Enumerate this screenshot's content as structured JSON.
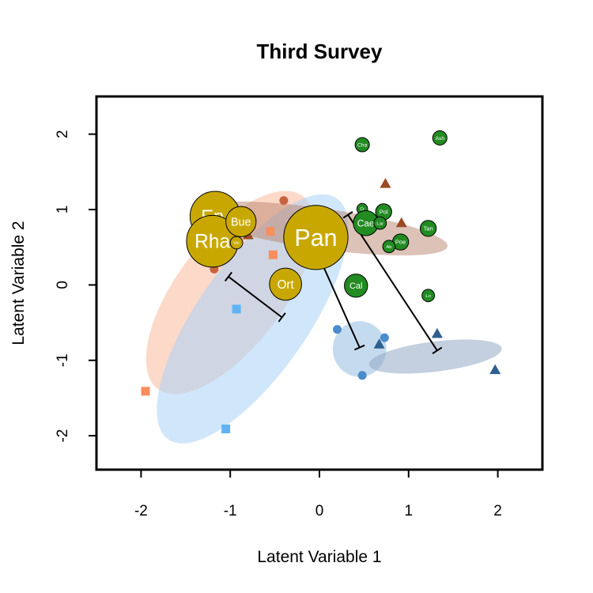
{
  "chart_data": {
    "type": "scatter",
    "title": "Third Survey",
    "xlabel": "Latent Variable 1",
    "ylabel": "Latent Variable 2",
    "xlim": [
      -2.5,
      2.5
    ],
    "ylim": [
      -2.45,
      2.5
    ],
    "xticks": [
      -2,
      -1,
      0,
      1,
      2
    ],
    "yticks": [
      -2,
      -1,
      0,
      1,
      2
    ],
    "grid": false,
    "legend": "none",
    "ellipses": [
      {
        "cx": -1.0,
        "cy": -0.1,
        "rx": 0.6,
        "ry": 1.6,
        "angle": 37,
        "color": "#FBB99C",
        "opacity": 0.55
      },
      {
        "cx": -0.75,
        "cy": -0.45,
        "rx": 0.62,
        "ry": 1.95,
        "angle": 35,
        "color": "#A9D2F5",
        "opacity": 0.55
      },
      {
        "cx": 0.0,
        "cy": 0.75,
        "rx": 1.45,
        "ry": 0.27,
        "angle": 8,
        "color": "#B98670",
        "opacity": 0.5
      },
      {
        "cx": 0.45,
        "cy": -0.85,
        "rx": 0.3,
        "ry": 0.37,
        "angle": 0,
        "color": "#9CC3E4",
        "opacity": 0.6
      },
      {
        "cx": 1.3,
        "cy": -0.95,
        "rx": 0.75,
        "ry": 0.2,
        "angle": -7,
        "color": "#93A8C4",
        "opacity": 0.55
      }
    ],
    "segments": [
      {
        "x1": -1.02,
        "y1": 0.11,
        "x2": -0.42,
        "y2": -0.43
      },
      {
        "x1": -0.15,
        "y1": 0.76,
        "x2": 0.45,
        "y2": -0.83
      },
      {
        "x1": 0.32,
        "y1": 0.93,
        "x2": 1.32,
        "y2": -0.87
      }
    ],
    "points": [
      {
        "x": -1.95,
        "y": -1.41,
        "shape": "square",
        "color": "#F98D5E"
      },
      {
        "x": -1.05,
        "y": -1.91,
        "shape": "square",
        "color": "#5FB3F3"
      },
      {
        "x": -0.93,
        "y": -0.32,
        "shape": "square",
        "color": "#5FB3F3"
      },
      {
        "x": -0.55,
        "y": 0.71,
        "shape": "square",
        "color": "#F98D5E"
      },
      {
        "x": -0.52,
        "y": 0.4,
        "shape": "square",
        "color": "#F98D5E"
      },
      {
        "x": -1.18,
        "y": 0.21,
        "shape": "circle",
        "color": "#C8643E"
      },
      {
        "x": -0.4,
        "y": 1.12,
        "shape": "circle",
        "color": "#C8643E"
      },
      {
        "x": 0.2,
        "y": -0.59,
        "shape": "circle",
        "color": "#4A8CCB"
      },
      {
        "x": 0.48,
        "y": -1.2,
        "shape": "circle",
        "color": "#4A8CCB"
      },
      {
        "x": 0.73,
        "y": -0.7,
        "shape": "circle",
        "color": "#4A8CCB"
      },
      {
        "x": -0.8,
        "y": 0.66,
        "shape": "triangle",
        "color": "#9B4A24"
      },
      {
        "x": 0.74,
        "y": 1.34,
        "shape": "triangle",
        "color": "#9B4A24"
      },
      {
        "x": 0.92,
        "y": 0.82,
        "shape": "triangle",
        "color": "#9B4A24"
      },
      {
        "x": 0.67,
        "y": -0.79,
        "shape": "triangle",
        "color": "#2E5F8E"
      },
      {
        "x": 1.32,
        "y": -0.65,
        "shape": "triangle",
        "color": "#2E5F8E"
      },
      {
        "x": 1.97,
        "y": -1.13,
        "shape": "triangle",
        "color": "#2E5F8E"
      }
    ],
    "bubbles": [
      {
        "label": "Ery",
        "x": -1.17,
        "y": 0.91,
        "r": 0.28,
        "color": "#C8A800"
      },
      {
        "label": "Rha",
        "x": -1.2,
        "y": 0.58,
        "r": 0.29,
        "color": "#C8A800"
      },
      {
        "label": "Bue",
        "x": -0.88,
        "y": 0.84,
        "r": 0.17,
        "color": "#C8A800"
      },
      {
        "label": "Vic",
        "x": -0.93,
        "y": 0.56,
        "r": 0.07,
        "color": "#C8A800"
      },
      {
        "label": "Pan",
        "x": -0.04,
        "y": 0.63,
        "r": 0.36,
        "color": "#C8A800"
      },
      {
        "label": "Ort",
        "x": -0.38,
        "y": 0.01,
        "r": 0.18,
        "color": "#C8A800"
      },
      {
        "label": "Cha",
        "x": 0.48,
        "y": 1.86,
        "r": 0.08,
        "color": "#228B22"
      },
      {
        "label": "Ash",
        "x": 1.35,
        "y": 1.95,
        "r": 0.08,
        "color": "#228B22"
      },
      {
        "label": "Cr",
        "x": 0.48,
        "y": 1.01,
        "r": 0.06,
        "color": "#228B22"
      },
      {
        "label": "Pol",
        "x": 0.72,
        "y": 0.97,
        "r": 0.09,
        "color": "#228B22"
      },
      {
        "label": "Cae",
        "x": 0.52,
        "y": 0.82,
        "r": 0.14,
        "color": "#228B22"
      },
      {
        "label": "Lar",
        "x": 0.68,
        "y": 0.82,
        "r": 0.07,
        "color": "#228B22"
      },
      {
        "label": "Tan",
        "x": 1.22,
        "y": 0.75,
        "r": 0.09,
        "color": "#228B22"
      },
      {
        "label": "Poe",
        "x": 0.91,
        "y": 0.57,
        "r": 0.09,
        "color": "#228B22"
      },
      {
        "label": "Ab",
        "x": 0.78,
        "y": 0.51,
        "r": 0.07,
        "color": "#228B22"
      },
      {
        "label": "Cal",
        "x": 0.41,
        "y": -0.01,
        "r": 0.13,
        "color": "#228B22"
      },
      {
        "label": "Lo",
        "x": 1.22,
        "y": -0.14,
        "r": 0.07,
        "color": "#228B22"
      }
    ]
  }
}
